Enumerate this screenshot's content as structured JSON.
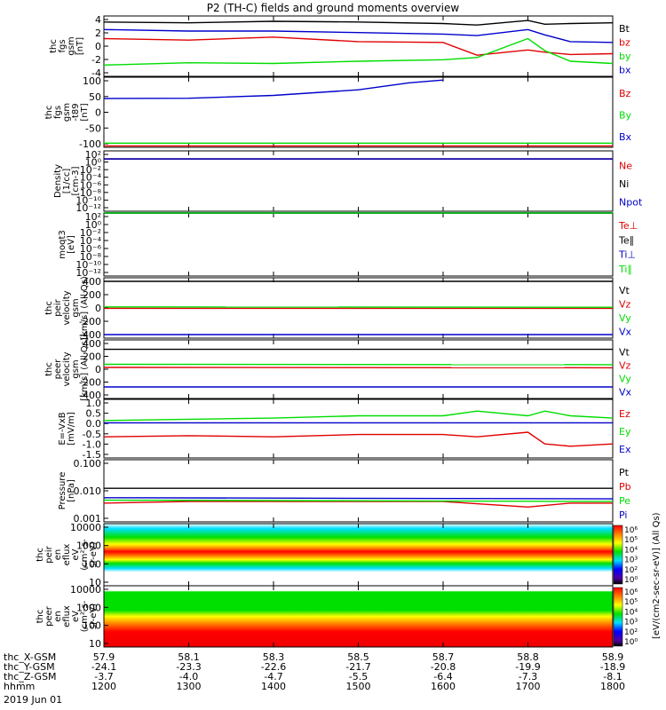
{
  "title": "P2 (TH-C) fields and ground moments overview",
  "date_label": "2019 Jun 01",
  "colors": {
    "black": "#000000",
    "red": "#e00000",
    "green": "#00dd00",
    "blue": "#0000cc"
  },
  "ephemeris": {
    "rows": [
      {
        "label": "thc_X-GSM",
        "values": [
          "57.9",
          "58.1",
          "58.3",
          "58.5",
          "58.7",
          "58.8",
          "58.9"
        ]
      },
      {
        "label": "thc_Y-GSM",
        "values": [
          "-24.1",
          "-23.3",
          "-22.6",
          "-21.7",
          "-20.8",
          "-19.9",
          "-18.9"
        ]
      },
      {
        "label": "thc_Z-GSM",
        "values": [
          "-3.7",
          "-4.0",
          "-4.7",
          "-5.5",
          "-6.4",
          "-7.3",
          "-8.1"
        ]
      },
      {
        "label": "hhmm",
        "values": [
          "1200",
          "1300",
          "1400",
          "1500",
          "1600",
          "1700",
          "1800"
        ]
      }
    ]
  },
  "colorbar": {
    "ticks": [
      "10⁶",
      "10⁵",
      "10⁴",
      "10³",
      "10²",
      "10⁰"
    ],
    "label": "[eV/(cm2-sec-sr-eV)] (All Qs)",
    "colors": [
      "#ff0000",
      "#ff8000",
      "#ffff00",
      "#00e000",
      "#00e0ff",
      "#0000ff",
      "#5000a0",
      "#000000"
    ]
  },
  "chart_data": [
    {
      "type": "line",
      "ylabel": "thc\nfgs\ngsm\n[nT]",
      "yticks": [
        "4",
        "2",
        "0",
        "-2",
        "-4"
      ],
      "ylim": [
        -4,
        4
      ],
      "series": [
        {
          "name": "Bt",
          "color": "#000000",
          "x": [
            1200,
            1300,
            1400,
            1500,
            1600,
            1640,
            1700,
            1720,
            1750,
            1800
          ],
          "values": [
            3.2,
            3.1,
            3.3,
            3.2,
            3.0,
            2.8,
            3.4,
            2.9,
            3.0,
            3.1
          ]
        },
        {
          "name": "bz",
          "color": "#e00000",
          "x": [
            1200,
            1300,
            1400,
            1500,
            1600,
            1640,
            1700,
            1720,
            1750,
            1800
          ],
          "values": [
            1.0,
            0.8,
            1.2,
            0.6,
            0.5,
            -1.2,
            -0.5,
            -0.8,
            -1.1,
            -1.0
          ]
        },
        {
          "name": "by",
          "color": "#00dd00",
          "x": [
            1200,
            1300,
            1400,
            1500,
            1600,
            1640,
            1700,
            1720,
            1750,
            1800
          ],
          "values": [
            -2.5,
            -2.2,
            -2.3,
            -2.0,
            -1.8,
            -1.5,
            1.0,
            -0.6,
            -2.0,
            -2.3
          ]
        },
        {
          "name": "bx",
          "color": "#0000cc",
          "x": [
            1200,
            1300,
            1400,
            1500,
            1600,
            1640,
            1700,
            1720,
            1750,
            1800
          ],
          "values": [
            2.2,
            2.0,
            2.0,
            1.8,
            1.6,
            1.4,
            2.2,
            1.5,
            0.6,
            0.5
          ]
        }
      ]
    },
    {
      "type": "line",
      "ylabel": "thc\nfgs\ngsm\n-t89\n[nT]",
      "yticks": [
        "100",
        "50",
        "0",
        "-50",
        "-100"
      ],
      "ylim": [
        -140,
        110
      ],
      "series": [
        {
          "name": "Bz",
          "color": "#e00000",
          "x": [
            1200,
            1800
          ],
          "values": [
            -135,
            -135
          ]
        },
        {
          "name": "By",
          "color": "#00dd00",
          "x": [
            1200,
            1800
          ],
          "values": [
            -125,
            -125
          ]
        },
        {
          "name": "Bx",
          "color": "#0000cc",
          "x": [
            1200,
            1300,
            1400,
            1500,
            1560,
            1600
          ],
          "values": [
            34,
            35,
            45,
            65,
            90,
            100
          ]
        }
      ]
    },
    {
      "type": "line",
      "ylabel": "Density\n[1/cc]\n[cm-3]",
      "yticks": [
        "10²",
        "10⁰",
        "10⁻²",
        "10⁻⁴",
        "10⁻⁶",
        "10⁻⁸",
        "10⁻¹⁰",
        "10⁻¹²"
      ],
      "series": [
        {
          "name": "Ne",
          "color": "#e00000",
          "x": [
            1200,
            1800
          ],
          "values": [
            1,
            1
          ]
        },
        {
          "name": "Ni",
          "color": "#000000",
          "x": [
            1200,
            1800
          ],
          "values": [
            1,
            1
          ]
        },
        {
          "name": "Npot",
          "color": "#0000cc",
          "x": [
            1200,
            1800
          ],
          "values": [
            1,
            1
          ]
        }
      ]
    },
    {
      "type": "line",
      "ylabel": "moqt3\n[eV]",
      "yticks": [
        "10²",
        "10⁰",
        "10⁻²",
        "10⁻⁴",
        "10⁻⁶",
        "10⁻⁸",
        "10⁻¹⁰",
        "10⁻¹²"
      ],
      "series": [
        {
          "name": "Te⊥",
          "color": "#e00000",
          "x": [
            1200,
            1800
          ],
          "values": [
            100,
            100
          ]
        },
        {
          "name": "Te∥",
          "color": "#000000",
          "x": [
            1200,
            1800
          ],
          "values": [
            100,
            100
          ]
        },
        {
          "name": "Ti⊥",
          "color": "#0000cc",
          "x": [
            1200,
            1800
          ],
          "values": [
            100,
            100
          ]
        },
        {
          "name": "Ti∥",
          "color": "#00dd00",
          "x": [
            1200,
            1800
          ],
          "values": [
            100,
            100
          ]
        }
      ]
    },
    {
      "type": "line",
      "ylabel": "thc\npeir\nvelocity\ngsm\n[km/s] (All Qs)",
      "yticks": [
        "400",
        "200",
        "0",
        "-200",
        "-400"
      ],
      "ylim": [
        -420,
        420
      ],
      "series": [
        {
          "name": "Vt",
          "color": "#000000",
          "x": [
            1200,
            1800
          ],
          "values": [
            370,
            370
          ]
        },
        {
          "name": "Vz",
          "color": "#e00000",
          "x": [
            1200,
            1800
          ],
          "values": [
            -5,
            -5
          ]
        },
        {
          "name": "Vy",
          "color": "#00dd00",
          "x": [
            1200,
            1800
          ],
          "values": [
            15,
            10
          ]
        },
        {
          "name": "Vx",
          "color": "#0000cc",
          "x": [
            1200,
            1800
          ],
          "values": [
            -370,
            -370
          ]
        }
      ]
    },
    {
      "type": "line",
      "ylabel": "thc\npeer\nvelocity\ngsm\n[km/s] (All Qs)",
      "yticks": [
        "400",
        "200",
        "0",
        "-200",
        "-400"
      ],
      "ylim": [
        -420,
        420
      ],
      "series": [
        {
          "name": "Vt",
          "color": "#000000",
          "x": [
            1200,
            1800
          ],
          "values": [
            285,
            285
          ]
        },
        {
          "name": "Vz",
          "color": "#e00000",
          "x": [
            1200,
            1800
          ],
          "values": [
            25,
            20
          ]
        },
        {
          "name": "Vy",
          "color": "#00dd00",
          "x": [
            1200,
            1800
          ],
          "values": [
            70,
            65
          ]
        },
        {
          "name": "Vx",
          "color": "#0000cc",
          "x": [
            1200,
            1800
          ],
          "values": [
            -255,
            -255
          ]
        }
      ]
    },
    {
      "type": "line",
      "ylabel": "E=-VxB\n[mV/m]",
      "yticks": [
        "1.0",
        "0.5",
        "0.0",
        "-0.5",
        "-1.0",
        "-1.5"
      ],
      "ylim": [
        -1.5,
        1.0
      ],
      "series": [
        {
          "name": "Ez",
          "color": "#e00000",
          "x": [
            1200,
            1300,
            1400,
            1500,
            1600,
            1640,
            1700,
            1720,
            1750,
            1800
          ],
          "values": [
            -0.6,
            -0.55,
            -0.6,
            -0.5,
            -0.5,
            -0.6,
            -0.4,
            -0.9,
            -1.0,
            -0.9
          ]
        },
        {
          "name": "Ey",
          "color": "#00dd00",
          "x": [
            1200,
            1300,
            1400,
            1500,
            1600,
            1640,
            1700,
            1720,
            1750,
            1800
          ],
          "values": [
            0.1,
            0.15,
            0.2,
            0.3,
            0.3,
            0.5,
            0.3,
            0.5,
            0.3,
            0.2
          ]
        },
        {
          "name": "Ex",
          "color": "#0000cc",
          "x": [
            1200,
            1800
          ],
          "values": [
            0,
            0
          ]
        }
      ]
    },
    {
      "type": "line",
      "ylabel": "Pressure\n[nPa]",
      "yticks": [
        "0.100",
        "0.010",
        "0.001"
      ],
      "series": [
        {
          "name": "Pt",
          "color": "#000000",
          "x": [
            1200,
            1800
          ],
          "values": [
            0.012,
            0.012
          ]
        },
        {
          "name": "Pb",
          "color": "#e00000",
          "x": [
            1200,
            1300,
            1600,
            1700,
            1750,
            1800
          ],
          "values": [
            0.004,
            0.0045,
            0.0045,
            0.003,
            0.004,
            0.004
          ]
        },
        {
          "name": "Pe",
          "color": "#00dd00",
          "x": [
            1200,
            1800
          ],
          "values": [
            0.005,
            0.0045
          ]
        },
        {
          "name": "Pi",
          "color": "#0000cc",
          "x": [
            1200,
            1800
          ],
          "values": [
            0.006,
            0.0055
          ]
        }
      ]
    },
    {
      "type": "heatmap",
      "ylabel": "thc\npeir\nen\neflux\neV\n(cm²-s-\nsr-eV)",
      "yticks": [
        "10000",
        "1000",
        "100",
        "10"
      ]
    },
    {
      "type": "heatmap",
      "ylabel": "thc\npeer\nen\neflux\neV\n(cm²-s-\nsr-eV)",
      "yticks": [
        "10000",
        "1000",
        "100",
        "10"
      ]
    }
  ]
}
